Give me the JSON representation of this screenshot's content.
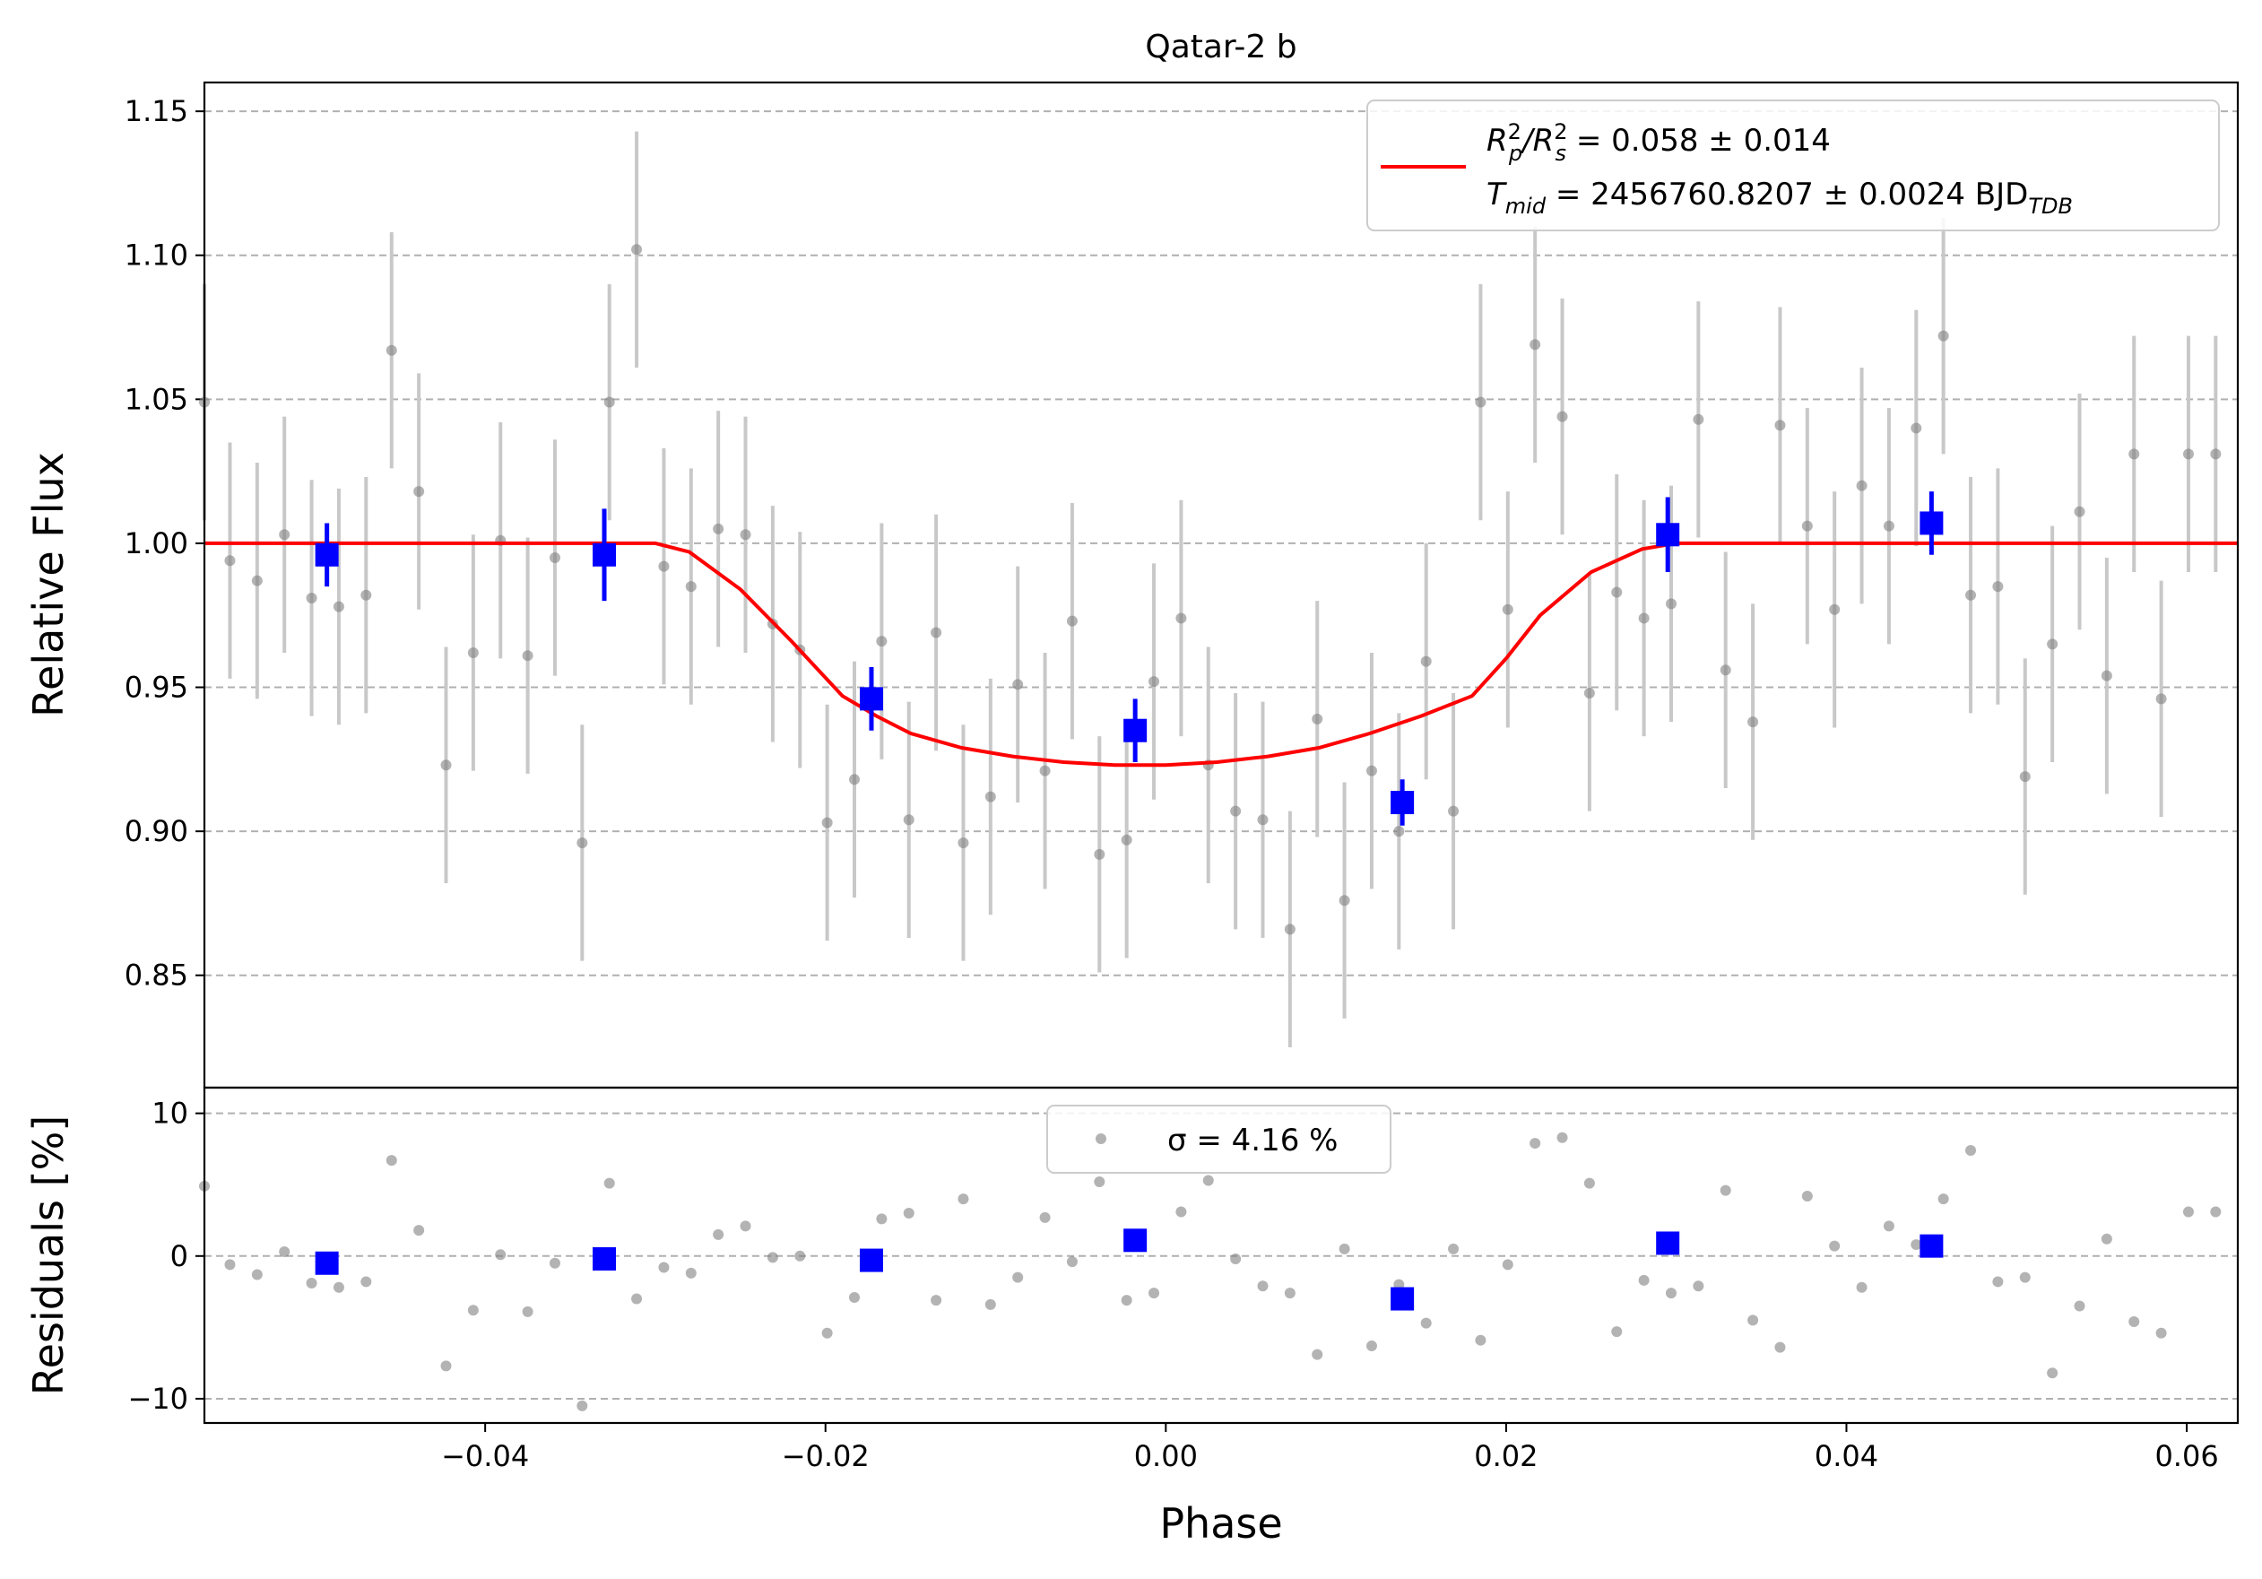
{
  "chart_data": [
    {
      "type": "scatter",
      "title": "Qatar-2 b",
      "xlabel": "",
      "ylabel": "Relative Flux",
      "xlim": [
        -0.0565,
        0.063
      ],
      "ylim": [
        0.811,
        1.16
      ],
      "yticks": [
        0.85,
        0.9,
        0.95,
        1.0,
        1.05,
        1.1,
        1.15
      ],
      "ytick_labels": [
        "0.85",
        "0.90",
        "0.95",
        "1.00",
        "1.05",
        "1.10",
        "1.15"
      ],
      "grid": "horizontal dashed",
      "legend": {
        "placement": "top-right",
        "entries": [
          {
            "label_main": "R",
            "sub1": "p",
            "sup1": "2",
            "sep": "/R",
            "sub2": "s",
            "sup2": "2",
            "value": " = 0.058 ± 0.014"
          },
          {
            "label_main": "T",
            "sub1": "mid",
            "value": " = 2456760.8207 ± 0.0024 BJD",
            "value_sub": "TDB"
          }
        ]
      },
      "colors": {
        "data": "#808080",
        "error": "#c8c8c8",
        "binned": "#0000ff",
        "model": "#ff0000",
        "grid": "#b0b0b0"
      },
      "series": [
        {
          "name": "",
          "kind": "data",
          "x": [
            -0.0565,
            -0.055,
            -0.0534,
            -0.0518,
            -0.0502,
            -0.0486,
            -0.047,
            -0.0455,
            -0.0439,
            -0.0423,
            -0.0407,
            -0.0391,
            -0.0375,
            -0.0359,
            -0.0343,
            -0.0327,
            -0.0311,
            -0.0295,
            -0.0279,
            -0.0263,
            -0.0247,
            -0.0231,
            -0.0215,
            -0.0199,
            -0.0183,
            -0.0167,
            -0.0151,
            -0.0135,
            -0.0119,
            -0.0103,
            -0.0087,
            -0.0071,
            -0.0055,
            -0.0039,
            -0.0023,
            -0.0007,
            0.0009,
            0.0025,
            0.0041,
            0.0057,
            0.0073,
            0.0089,
            0.0105,
            0.0121,
            0.0137,
            0.0153,
            0.0169,
            0.0185,
            0.0201,
            0.0217,
            0.0233,
            0.0249,
            0.0265,
            0.0281,
            0.0297,
            0.0313,
            0.0329,
            0.0345,
            0.0361,
            0.0377,
            0.0393,
            0.0409,
            0.0425,
            0.0441,
            0.0457,
            0.0473,
            0.0489,
            0.0505,
            0.0521,
            0.0537,
            0.0553,
            0.0569,
            0.0585,
            0.0601,
            0.0617
          ],
          "y": [
            1.049,
            0.994,
            0.987,
            1.003,
            0.981,
            0.978,
            0.982,
            1.067,
            1.018,
            0.923,
            0.962,
            1.001,
            0.961,
            0.995,
            0.896,
            1.049,
            1.102,
            0.992,
            0.985,
            1.005,
            1.003,
            0.972,
            0.963,
            0.903,
            0.918,
            0.966,
            0.904,
            0.969,
            0.896,
            0.912,
            0.951,
            0.921,
            0.973,
            0.892,
            0.897,
            0.952,
            0.974,
            0.923,
            0.907,
            0.904,
            0.866,
            0.939,
            0.876,
            0.921,
            0.9,
            0.959,
            0.907,
            1.049,
            0.977,
            1.069,
            1.044,
            0.948,
            0.983,
            0.974,
            0.979,
            1.043,
            0.956,
            0.938,
            1.041,
            1.006,
            0.977,
            1.02,
            1.006,
            1.04,
            1.072,
            0.982,
            0.985,
            0.919,
            0.965,
            1.011,
            0.954,
            1.031,
            0.946,
            1.031,
            1.031
          ],
          "err": 0.041
        },
        {
          "name": "",
          "kind": "binned",
          "x": [
            -0.0493,
            -0.033,
            -0.0173,
            -0.0018,
            0.0139,
            0.0295,
            0.045
          ],
          "y": [
            0.996,
            0.996,
            0.946,
            0.935,
            0.91,
            1.003,
            1.007
          ],
          "err": [
            0.011,
            0.016,
            0.011,
            0.011,
            0.008,
            0.013,
            0.011
          ]
        },
        {
          "name": "",
          "kind": "model",
          "x": [
            -0.0565,
            -0.03,
            -0.028,
            -0.025,
            -0.022,
            -0.019,
            -0.017,
            -0.015,
            -0.012,
            -0.009,
            -0.006,
            -0.003,
            0.0,
            0.003,
            0.006,
            0.009,
            0.012,
            0.015,
            0.018,
            0.02,
            0.022,
            0.025,
            0.028,
            0.03,
            0.063
          ],
          "y": [
            1.0,
            1.0,
            0.997,
            0.984,
            0.966,
            0.947,
            0.94,
            0.934,
            0.929,
            0.926,
            0.924,
            0.923,
            0.923,
            0.924,
            0.926,
            0.929,
            0.934,
            0.94,
            0.947,
            0.96,
            0.975,
            0.99,
            0.998,
            1.0,
            1.0
          ]
        }
      ]
    },
    {
      "type": "scatter",
      "title": "",
      "xlabel": "Phase",
      "ylabel": "Residuals [%]",
      "xlim": [
        -0.0565,
        0.063
      ],
      "ylim": [
        -11.7,
        11.8
      ],
      "xticks": [
        -0.04,
        -0.02,
        0.0,
        0.02,
        0.04,
        0.06
      ],
      "xtick_labels": [
        "−0.04",
        "−0.02",
        "0.00",
        "0.02",
        "0.04",
        "0.06"
      ],
      "yticks": [
        -10,
        0,
        10
      ],
      "ytick_labels": [
        "−10",
        "0",
        "10"
      ],
      "grid": "horizontal dashed",
      "legend": {
        "placement": "top-center",
        "label": "σ = 4.16 %"
      },
      "series": [
        {
          "name": "",
          "kind": "residuals",
          "x": [
            -0.0565,
            -0.055,
            -0.0534,
            -0.0518,
            -0.0502,
            -0.0486,
            -0.047,
            -0.0455,
            -0.0439,
            -0.0423,
            -0.0407,
            -0.0391,
            -0.0375,
            -0.0359,
            -0.0343,
            -0.0327,
            -0.0311,
            -0.0295,
            -0.0279,
            -0.0263,
            -0.0247,
            -0.0231,
            -0.0215,
            -0.0199,
            -0.0183,
            -0.0167,
            -0.0151,
            -0.0135,
            -0.0119,
            -0.0103,
            -0.0087,
            -0.0071,
            -0.0055,
            -0.0039,
            -0.0023,
            -0.0007,
            0.0009,
            0.0025,
            0.0041,
            0.0057,
            0.0073,
            0.0089,
            0.0105,
            0.0121,
            0.0137,
            0.0153,
            0.0169,
            0.0185,
            0.0201,
            0.0217,
            0.0233,
            0.0249,
            0.0265,
            0.0281,
            0.0297,
            0.0313,
            0.0329,
            0.0345,
            0.0361,
            0.0377,
            0.0393,
            0.0409,
            0.0425,
            0.0441,
            0.0457,
            0.0473,
            0.0489,
            0.0505,
            0.0521,
            0.0537,
            0.0553,
            0.0569,
            0.0585,
            0.0601,
            0.0617
          ],
          "y": [
            4.9,
            -0.6,
            -1.3,
            0.3,
            -1.9,
            -2.2,
            -1.8,
            6.7,
            1.8,
            -7.7,
            -3.8,
            0.1,
            -3.9,
            -0.5,
            -10.5,
            5.1,
            -3.0,
            -0.8,
            -1.2,
            1.5,
            2.1,
            -0.1,
            0.0,
            -5.4,
            -2.9,
            2.6,
            3.0,
            -3.1,
            4.0,
            -3.4,
            -1.5,
            2.7,
            -0.4,
            5.2,
            -3.1,
            -2.6,
            3.1,
            5.3,
            -0.2,
            -2.1,
            -2.6,
            -6.9,
            0.5,
            -6.3,
            -2.0,
            -4.7,
            0.5,
            -5.9,
            -0.6,
            7.9,
            8.3,
            5.1,
            -5.3,
            -1.7,
            -2.6,
            -2.1,
            4.6,
            -4.5,
            -6.4,
            4.2,
            0.7,
            -2.2,
            2.1,
            0.8,
            4.0,
            7.4,
            -1.8,
            -1.5,
            -8.2,
            -3.5,
            1.2,
            -4.6,
            -5.4,
            3.1,
            3.1
          ]
        },
        {
          "name": "",
          "kind": "binned",
          "x": [
            -0.0493,
            -0.033,
            -0.0173,
            -0.0018,
            0.0139,
            0.0295,
            0.045
          ],
          "y": [
            -0.5,
            -0.2,
            -0.3,
            1.1,
            -3.0,
            0.9,
            0.7
          ]
        }
      ]
    }
  ]
}
